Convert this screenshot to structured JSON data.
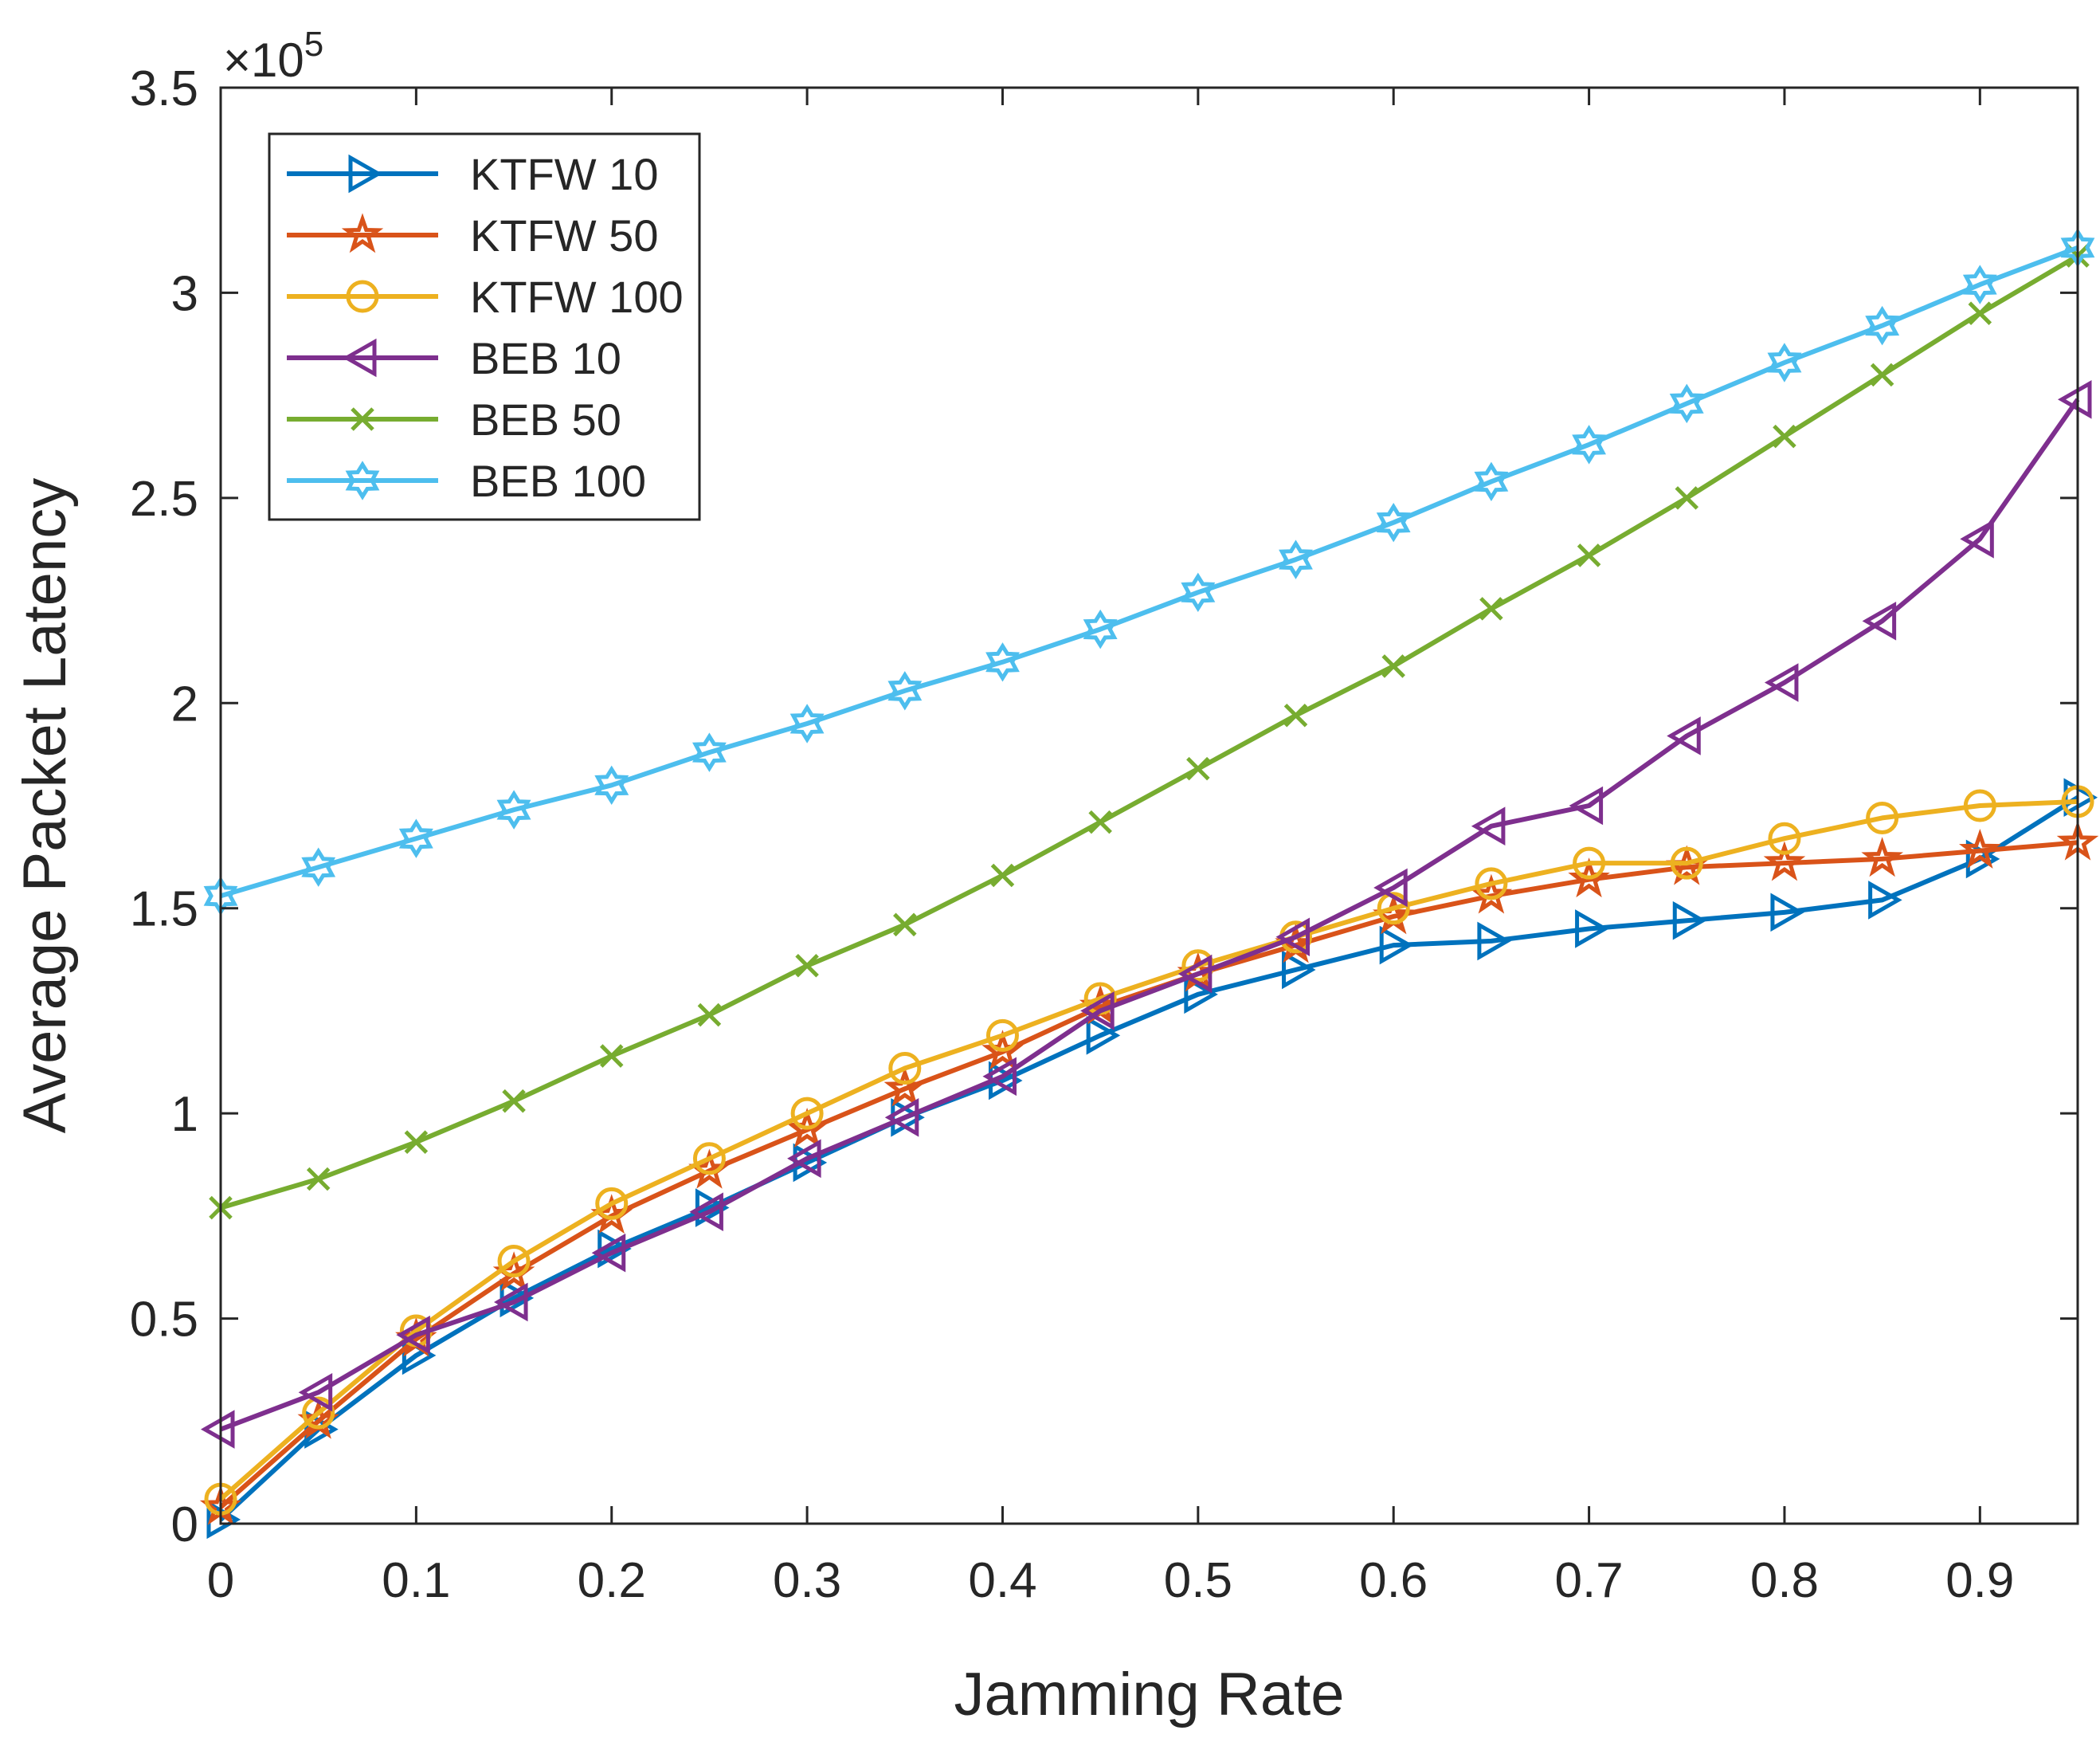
{
  "chart_data": {
    "type": "line",
    "title": "",
    "xlabel": "Jamming Rate",
    "ylabel": "Average Packet Latency",
    "exponent_label": "×10",
    "exponent_power": "5",
    "exponent_value": 100000,
    "xlim": [
      0,
      0.95
    ],
    "ylim": [
      0,
      3.5
    ],
    "x_ticks": [
      0,
      0.1,
      0.2,
      0.3,
      0.4,
      0.5,
      0.6,
      0.7,
      0.8,
      0.9
    ],
    "x_tick_labels": [
      "0",
      "0.1",
      "0.2",
      "0.3",
      "0.4",
      "0.5",
      "0.6",
      "0.7",
      "0.8",
      "0.9"
    ],
    "y_ticks": [
      0,
      0.5,
      1,
      1.5,
      2,
      2.5,
      3,
      3.5
    ],
    "y_tick_labels": [
      "0",
      "0.5",
      "1",
      "1.5",
      "2",
      "2.5",
      "3",
      "3.5"
    ],
    "grid": false,
    "legend_position": "top-left",
    "x": [
      0,
      0.05,
      0.1,
      0.15,
      0.2,
      0.25,
      0.3,
      0.35,
      0.4,
      0.45,
      0.5,
      0.55,
      0.6,
      0.65,
      0.7,
      0.75,
      0.8,
      0.85,
      0.9,
      0.95
    ],
    "series": [
      {
        "name": "KTFW 10",
        "color": "#0072BD",
        "marker": "triangle-right",
        "values": [
          0.01,
          0.23,
          0.41,
          0.55,
          0.67,
          0.77,
          0.88,
          0.99,
          1.08,
          1.19,
          1.29,
          1.35,
          1.41,
          1.42,
          1.45,
          1.47,
          1.49,
          1.52,
          1.62,
          1.77
        ]
      },
      {
        "name": "KTFW 50",
        "color": "#D95319",
        "marker": "pentagram",
        "values": [
          0.04,
          0.25,
          0.45,
          0.61,
          0.75,
          0.86,
          0.96,
          1.06,
          1.15,
          1.26,
          1.34,
          1.41,
          1.48,
          1.53,
          1.57,
          1.6,
          1.61,
          1.62,
          1.64,
          1.66
        ]
      },
      {
        "name": "KTFW 100",
        "color": "#EDB120",
        "marker": "circle",
        "values": [
          0.06,
          0.27,
          0.47,
          0.64,
          0.78,
          0.89,
          1.0,
          1.11,
          1.19,
          1.28,
          1.36,
          1.43,
          1.5,
          1.56,
          1.61,
          1.61,
          1.67,
          1.72,
          1.75,
          1.76
        ]
      },
      {
        "name": "BEB 10",
        "color": "#7E2F8E",
        "marker": "triangle-left",
        "values": [
          0.23,
          0.32,
          0.46,
          0.54,
          0.66,
          0.76,
          0.89,
          0.99,
          1.09,
          1.25,
          1.34,
          1.43,
          1.55,
          1.7,
          1.75,
          1.92,
          2.05,
          2.2,
          2.4,
          2.74
        ]
      },
      {
        "name": "BEB 50",
        "color": "#77AC30",
        "marker": "x",
        "values": [
          0.77,
          0.84,
          0.93,
          1.03,
          1.14,
          1.24,
          1.36,
          1.46,
          1.58,
          1.71,
          1.84,
          1.97,
          2.09,
          2.23,
          2.36,
          2.5,
          2.65,
          2.8,
          2.95,
          3.09
        ]
      },
      {
        "name": "BEB 100",
        "color": "#4DBEEE",
        "marker": "hexagram",
        "values": [
          1.53,
          1.6,
          1.67,
          1.74,
          1.8,
          1.88,
          1.95,
          2.03,
          2.1,
          2.18,
          2.27,
          2.35,
          2.44,
          2.54,
          2.63,
          2.73,
          2.83,
          2.92,
          3.02,
          3.11
        ]
      }
    ]
  }
}
